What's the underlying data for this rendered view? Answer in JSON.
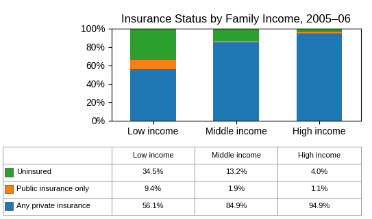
{
  "chart_data": {
    "type": "bar",
    "stacked": true,
    "title": "Insurance Status by Family Income, 2005–06",
    "categories": [
      "Low income",
      "Middle income",
      "High income"
    ],
    "series": [
      {
        "name": "Any private insurance",
        "values": [
          56.1,
          84.9,
          94.9
        ],
        "value_labels": [
          "56.1%",
          "84.9%",
          "94.9%"
        ]
      },
      {
        "name": "Public insurance only",
        "values": [
          9.4,
          1.9,
          1.1
        ],
        "value_labels": [
          "9.4%",
          "1.9%",
          "1.1%"
        ]
      },
      {
        "name": "Uninsured",
        "values": [
          34.5,
          13.2,
          4.0
        ],
        "value_labels": [
          "34.5%",
          "13.2%",
          "4.0%"
        ]
      }
    ],
    "ylim": [
      0,
      100
    ],
    "yticks": [
      {
        "value": 0,
        "label": "0%"
      },
      {
        "value": 20,
        "label": "20%"
      },
      {
        "value": 40,
        "label": "40%"
      },
      {
        "value": 60,
        "label": "60%"
      },
      {
        "value": 80,
        "label": "80%"
      },
      {
        "value": 100,
        "label": "100%"
      }
    ]
  }
}
